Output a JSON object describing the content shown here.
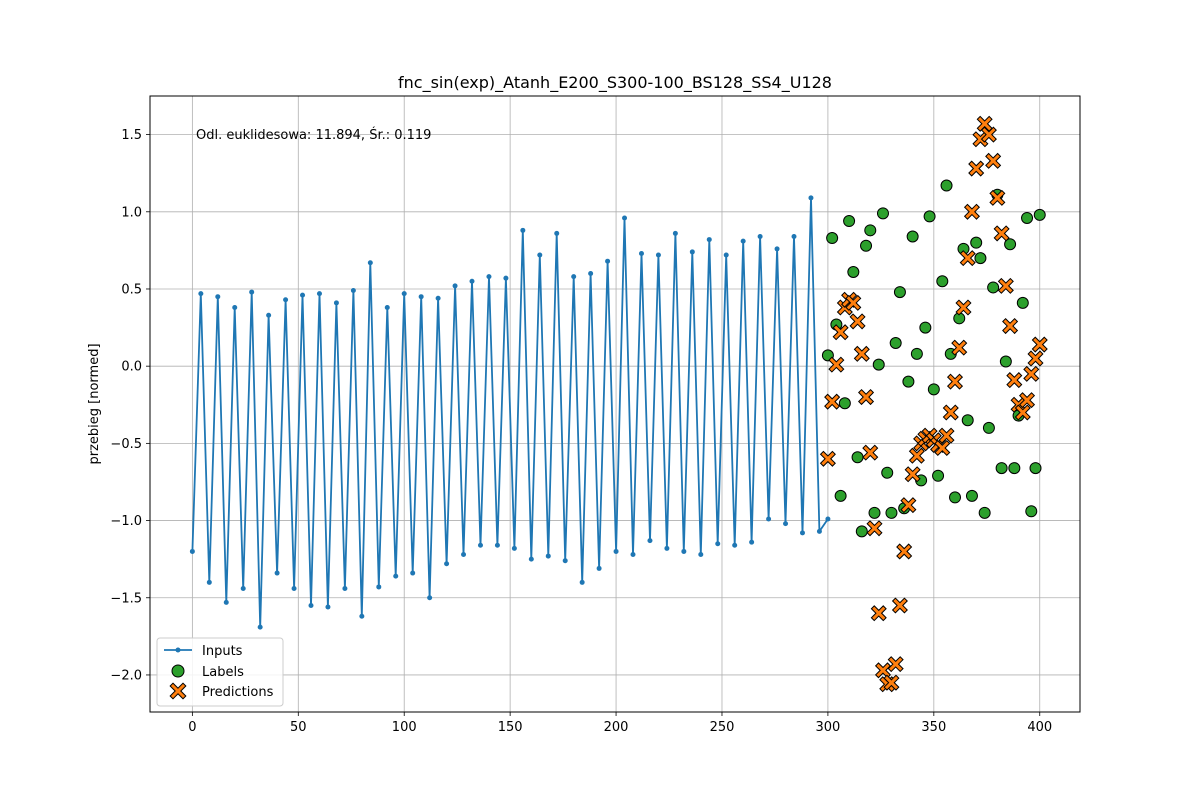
{
  "chart_data": {
    "type": "line",
    "title": "fnc_sin(exp)_Atanh_E200_S300-100_BS128_SS4_U128",
    "xlabel": "",
    "ylabel": "przebieg [normed]",
    "annotation": "Odl. euklidesowa: 11.894, Śr.: 0.119",
    "xlim": [
      -20,
      419
    ],
    "ylim": [
      -2.24,
      1.75
    ],
    "xticks": [
      0,
      50,
      100,
      150,
      200,
      250,
      300,
      350,
      400
    ],
    "yticks": [
      -2.0,
      -1.5,
      -1.0,
      -0.5,
      0.0,
      0.5,
      1.0,
      1.5
    ],
    "xtick_labels": [
      "0",
      "50",
      "100",
      "150",
      "200",
      "250",
      "300",
      "350",
      "400"
    ],
    "ytick_labels": [
      "−2.0",
      "−1.5",
      "−1.0",
      "−0.5",
      "0.0",
      "0.5",
      "1.0",
      "1.5"
    ],
    "grid": true,
    "legend_position": "lower-left",
    "series": [
      {
        "name": "Inputs",
        "style": "line-with-dot-markers",
        "color": "#1f77b4",
        "x": [
          0,
          4,
          8,
          12,
          16,
          20,
          24,
          28,
          32,
          36,
          40,
          44,
          48,
          52,
          56,
          60,
          64,
          68,
          72,
          76,
          80,
          84,
          88,
          92,
          96,
          100,
          104,
          108,
          112,
          116,
          120,
          124,
          128,
          132,
          136,
          140,
          144,
          148,
          152,
          156,
          160,
          164,
          168,
          172,
          176,
          180,
          184,
          188,
          192,
          196,
          200,
          204,
          208,
          212,
          216,
          220,
          224,
          228,
          232,
          236,
          240,
          244,
          248,
          252,
          256,
          260,
          264,
          268,
          272,
          276,
          280,
          284,
          288,
          292,
          296,
          300
        ],
        "values": [
          -1.2,
          0.47,
          -1.4,
          0.45,
          -1.53,
          0.38,
          -1.44,
          0.48,
          -1.69,
          0.33,
          -1.34,
          0.43,
          -1.44,
          0.46,
          -1.55,
          0.47,
          -1.56,
          0.41,
          -1.44,
          0.49,
          -1.62,
          0.67,
          -1.43,
          0.38,
          -1.36,
          0.47,
          -1.34,
          0.45,
          -1.5,
          0.44,
          -1.28,
          0.52,
          -1.22,
          0.55,
          -1.16,
          0.58,
          -1.16,
          0.57,
          -1.18,
          0.88,
          -1.25,
          0.72,
          -1.23,
          0.86,
          -1.26,
          0.58,
          -1.4,
          0.6,
          -1.31,
          0.68,
          -1.2,
          0.96,
          -1.22,
          0.73,
          -1.13,
          0.72,
          -1.18,
          0.86,
          -1.2,
          0.74,
          -1.22,
          0.82,
          -1.15,
          0.72,
          -1.16,
          0.81,
          -1.14,
          0.84,
          -0.99,
          0.76,
          -1.02,
          0.84,
          -1.08,
          1.09,
          -1.07,
          -0.99
        ]
      },
      {
        "name": "Labels",
        "style": "circle-markers",
        "color": "#2ca02c",
        "x": [
          300,
          302,
          304,
          306,
          308,
          310,
          312,
          314,
          316,
          318,
          320,
          322,
          324,
          326,
          328,
          330,
          332,
          334,
          336,
          338,
          340,
          342,
          344,
          346,
          348,
          350,
          352,
          354,
          356,
          358,
          360,
          362,
          364,
          366,
          368,
          370,
          372,
          374,
          376,
          378,
          380,
          382,
          384,
          386,
          388,
          390,
          392,
          394,
          396,
          398,
          400
        ],
        "values": [
          0.07,
          0.83,
          0.27,
          -0.84,
          -0.24,
          0.94,
          0.61,
          -0.59,
          -1.07,
          0.78,
          0.88,
          -0.95,
          0.01,
          0.99,
          -0.69,
          -0.95,
          0.15,
          0.48,
          -0.92,
          -0.1,
          0.84,
          0.08,
          -0.74,
          0.25,
          0.97,
          -0.15,
          -0.71,
          0.55,
          1.17,
          0.08,
          -0.85,
          0.31,
          0.76,
          -0.35,
          -0.84,
          0.8,
          0.7,
          -0.95,
          -0.4,
          0.51,
          1.11,
          -0.66,
          0.03,
          0.79,
          -0.66,
          -0.32,
          0.41,
          0.96,
          -0.94,
          -0.66,
          0.98
        ]
      },
      {
        "name": "Predictions",
        "style": "x-markers",
        "color": "#ff7f0e",
        "x": [
          300,
          302,
          304,
          306,
          308,
          310,
          312,
          314,
          316,
          318,
          320,
          322,
          324,
          326,
          328,
          330,
          332,
          334,
          336,
          338,
          340,
          342,
          344,
          346,
          348,
          350,
          352,
          354,
          356,
          358,
          360,
          362,
          364,
          366,
          368,
          370,
          372,
          374,
          376,
          378,
          380,
          382,
          384,
          386,
          388,
          390,
          392,
          394,
          396,
          398,
          400
        ],
        "values": [
          -0.6,
          -0.23,
          0.01,
          0.22,
          0.38,
          0.43,
          0.41,
          0.29,
          0.08,
          -0.2,
          -0.56,
          -1.05,
          -1.6,
          -1.97,
          -2.06,
          -2.05,
          -1.93,
          -1.55,
          -1.2,
          -0.9,
          -0.7,
          -0.58,
          -0.5,
          -0.47,
          -0.45,
          -0.48,
          -0.51,
          -0.53,
          -0.45,
          -0.3,
          -0.1,
          0.12,
          0.38,
          0.7,
          1.0,
          1.28,
          1.47,
          1.57,
          1.5,
          1.33,
          1.09,
          0.86,
          0.52,
          0.26,
          -0.09,
          -0.25,
          -0.3,
          -0.22,
          -0.05,
          0.05,
          0.14
        ]
      }
    ]
  }
}
